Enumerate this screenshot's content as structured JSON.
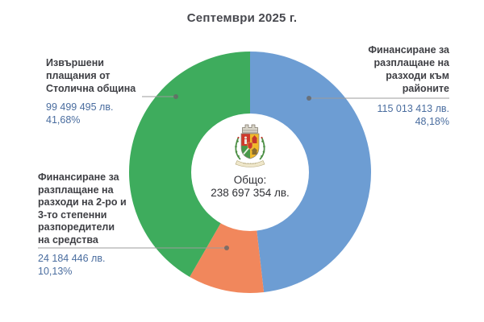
{
  "title": "Септември 2025 г.",
  "chart_data": {
    "type": "pie",
    "subtype": "donut",
    "title": "Септември 2025 г.",
    "start_angle": "top",
    "direction": "clockwise",
    "legend_position": "callout-labels",
    "center": {
      "label": "Общо:",
      "total_text": "238 697 354 лв.",
      "total_value": 238697354,
      "emblem": "sofia-coat-of-arms"
    },
    "series": [
      {
        "id": "districts",
        "label": "Финансиране за разплащане на разходи към районите",
        "value": 115013413,
        "value_text": "115 013 413 лв.",
        "percent": 48.18,
        "percent_text": "48,18%",
        "color": "#6D9DD3"
      },
      {
        "id": "secondary-spenders",
        "label": "Финансиране за разплащане на разходи на 2-ро и 3-то степенни разпоредители на средства",
        "value": 24184446,
        "value_text": "24 184 446 лв.",
        "percent": 10.13,
        "percent_text": "10,13%",
        "color": "#F1875C"
      },
      {
        "id": "sofia-payments",
        "label": "Извършени плащания от Столична община",
        "value": 99499495,
        "value_text": "99 499 495 лв.",
        "percent": 41.68,
        "percent_text": "41,68%",
        "color": "#3EAC5D"
      }
    ]
  },
  "callouts": {
    "sofia_payments": {
      "title_lines": "Извършени\nплащания от\nСтолична община"
    },
    "districts": {
      "title_lines": "Финансиране за\nразплащане на\nразходи към\nрайоните"
    },
    "secondary": {
      "title_lines": "Финансиране за\nразплащане на\nразходи на 2-ро и\n3-то степенни\nразпоредители\nна средства"
    }
  },
  "colors": {
    "leader_line": "#9b9b9b",
    "label_text": "#3e3f44",
    "number_text": "#4a6d9f"
  }
}
